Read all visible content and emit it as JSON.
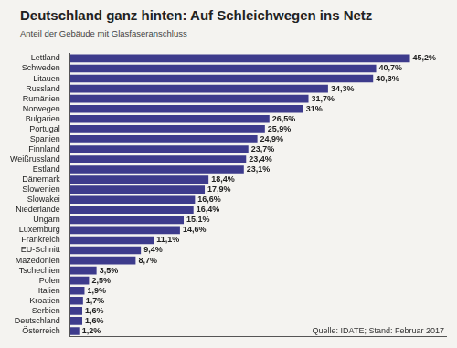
{
  "chart_data": {
    "type": "bar",
    "title": "Deutschland ganz hinten: Auf Schleichwegen ins Netz",
    "subtitle": "Anteil der Gebäude mit Glasfaseranschluss",
    "source": "Quelle: IDATE; Stand: Februar 2017",
    "orientation": "horizontal",
    "categories": [
      "Lettland",
      "Schweden",
      "Litauen",
      "Russland",
      "Rumänien",
      "Norwegen",
      "Bulgarien",
      "Portugal",
      "Spanien",
      "Finnland",
      "Weißrussland",
      "Estland",
      "Dänemark",
      "Slowenien",
      "Slowakei",
      "Niederlande",
      "Ungarn",
      "Luxemburg",
      "Frankreich",
      "EU-Schnitt",
      "Mazedonien",
      "Tschechien",
      "Polen",
      "Italien",
      "Kroatien",
      "Serbien",
      "Deutschland",
      "Österreich"
    ],
    "values": [
      45.2,
      40.7,
      40.3,
      34.3,
      31.7,
      31,
      26.5,
      25.9,
      24.9,
      23.7,
      23.4,
      23.1,
      18.4,
      17.9,
      16.6,
      16.4,
      15.1,
      14.6,
      11.1,
      9.4,
      8.7,
      3.5,
      2.5,
      1.9,
      1.7,
      1.6,
      1.6,
      1.2
    ],
    "value_labels": [
      "45,2%",
      "40,7%",
      "40,3%",
      "34,3%",
      "31,7%",
      "31%",
      "26,5%",
      "25,9%",
      "24,9%",
      "23,7%",
      "23,4%",
      "23,1%",
      "18,4%",
      "17,9%",
      "16,6%",
      "16,4%",
      "15,1%",
      "14,6%",
      "11,1%",
      "9,4%",
      "8,7%",
      "3,5%",
      "2,5%",
      "1,9%",
      "1,7%",
      "1,6%",
      "1,6%",
      "1,2%"
    ],
    "data_labels": true,
    "color": "#3d3b8c",
    "xlim": [
      0,
      50
    ],
    "grid": false,
    "tick_labels": "y"
  }
}
